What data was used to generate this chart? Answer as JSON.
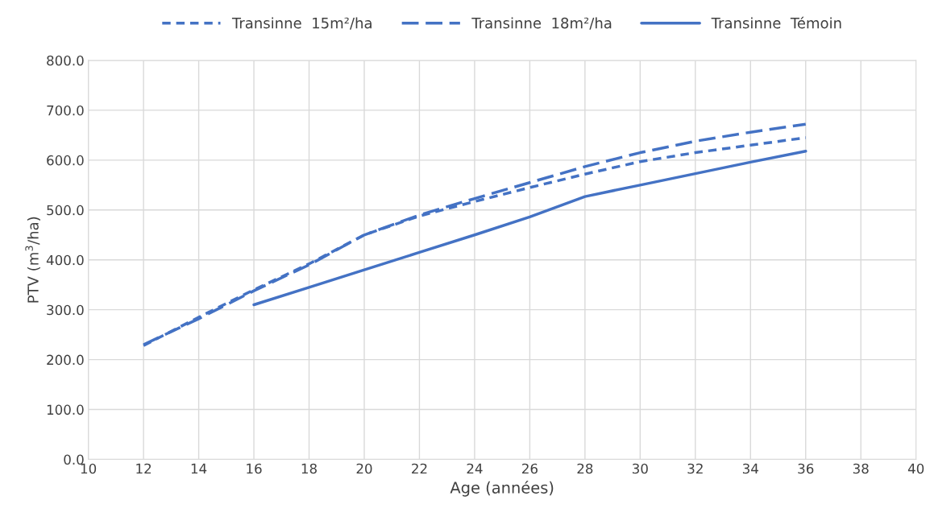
{
  "chart_data": {
    "type": "line",
    "xlabel": "Age (années)",
    "ylabel": "PTV (m$^{3}$/ha)",
    "x": [
      12,
      14,
      16,
      18,
      20,
      22,
      24,
      26,
      28,
      30,
      32,
      34,
      36
    ],
    "series": [
      {
        "name": "Transinne  15m²/ha",
        "color": "#4472c4",
        "line_style": "dotted",
        "values": [
          228,
          285,
          340,
          392,
          450,
          488,
          517,
          545,
          572,
          597,
          615,
          630,
          645
        ]
      },
      {
        "name": "Transinne  18m²/ha",
        "color": "#4472c4",
        "line_style": "dashed",
        "values": [
          230,
          282,
          338,
          390,
          450,
          490,
          523,
          555,
          587,
          615,
          638,
          656,
          672
        ]
      },
      {
        "name": "Transinne  Témoin",
        "color": "#4472c4",
        "line_style": "solid",
        "values": [
          null,
          null,
          310,
          345,
          380,
          415,
          450,
          486,
          527,
          550,
          573,
          596,
          618
        ]
      }
    ],
    "xlim": [
      10,
      40
    ],
    "xticks": [
      10,
      12,
      14,
      16,
      18,
      20,
      22,
      24,
      26,
      28,
      30,
      32,
      34,
      36,
      38,
      40
    ],
    "ylim": [
      0,
      800
    ],
    "yticks": [
      {
        "value": 0,
        "label": "0.0"
      },
      {
        "value": 100,
        "label": "100.0"
      },
      {
        "value": 200,
        "label": "200.0"
      },
      {
        "value": 300,
        "label": "300.0"
      },
      {
        "value": 400,
        "label": "400.0"
      },
      {
        "value": 500,
        "label": "500.0"
      },
      {
        "value": 600,
        "label": "600.0"
      },
      {
        "value": 700,
        "label": "700.0"
      },
      {
        "value": 800,
        "label": "800.0"
      }
    ],
    "grid": true,
    "legend": "top"
  }
}
